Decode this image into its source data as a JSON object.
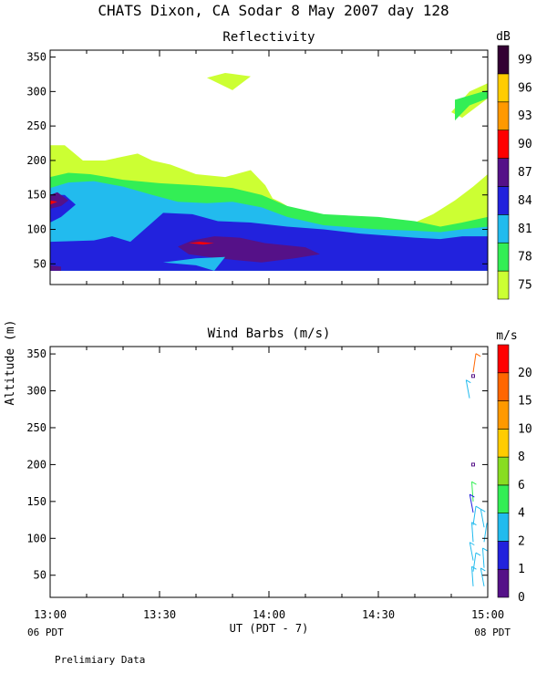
{
  "header": {
    "title": "CHATS Dixon, CA  Sodar   8 May 2007  day 128",
    "footer_note": "Prelimiary Data"
  },
  "chart_data": [
    {
      "type": "heatmap",
      "title": "Reflectivity",
      "ylabel": "Altitude (m)",
      "ylim": [
        20,
        360
      ],
      "yticks": [
        50,
        100,
        150,
        200,
        250,
        300,
        350
      ],
      "xlim": [
        0,
        120
      ],
      "colorbar": {
        "unit": "dB",
        "levels": [
          75,
          78,
          81,
          84,
          87,
          90,
          93,
          96,
          99
        ],
        "colors": [
          "#ccff33",
          "#33ee55",
          "#22bbee",
          "#2222dd",
          "#551188",
          "#ff0000",
          "#ff9900",
          "#ffcc00",
          "#330033"
        ]
      },
      "contour_regions": [
        {
          "level": 75,
          "polygons": [
            [
              [
                0,
                40
              ],
              [
                0,
                178
              ],
              [
                0,
                222
              ],
              [
                8,
                222
              ],
              [
                18,
                200
              ],
              [
                30,
                200
              ],
              [
                48,
                210
              ],
              [
                56,
                200
              ],
              [
                66,
                194
              ],
              [
                80,
                180
              ],
              [
                96,
                176
              ],
              [
                110,
                186
              ],
              [
                118,
                164
              ],
              [
                122,
                145
              ],
              [
                126,
                140
              ],
              [
                134,
                128
              ],
              [
                150,
                118
              ],
              [
                180,
                114
              ],
              [
                200,
                110
              ],
              [
                210,
                122
              ],
              [
                222,
                142
              ],
              [
                232,
                162
              ],
              [
                240,
                180
              ],
              [
                240,
                40
              ]
            ],
            [
              [
                86,
                320
              ],
              [
                96,
                327
              ],
              [
                110,
                322
              ],
              [
                100,
                302
              ]
            ],
            [
              [
                220,
                270
              ],
              [
                230,
                300
              ],
              [
                240,
                312
              ],
              [
                240,
                290
              ],
              [
                226,
                262
              ]
            ]
          ]
        },
        {
          "level": 78,
          "polygons": [
            [
              [
                0,
                40
              ],
              [
                0,
                160
              ],
              [
                0,
                176
              ],
              [
                10,
                182
              ],
              [
                22,
                180
              ],
              [
                40,
                172
              ],
              [
                60,
                167
              ],
              [
                80,
                164
              ],
              [
                100,
                160
              ],
              [
                116,
                150
              ],
              [
                130,
                134
              ],
              [
                150,
                122
              ],
              [
                180,
                118
              ],
              [
                200,
                112
              ],
              [
                214,
                104
              ],
              [
                226,
                110
              ],
              [
                240,
                118
              ],
              [
                240,
                40
              ]
            ],
            [
              [
                0,
                95
              ],
              [
                10,
                92
              ],
              [
                24,
                86
              ],
              [
                34,
                100
              ],
              [
                28,
                120
              ],
              [
                20,
                124
              ],
              [
                10,
                118
              ],
              [
                0,
                118
              ]
            ],
            [
              [
                222,
                258
              ],
              [
                230,
                280
              ],
              [
                240,
                290
              ],
              [
                240,
                302
              ],
              [
                222,
                288
              ]
            ]
          ]
        },
        {
          "level": 81,
          "polygons": [
            [
              [
                0,
                40
              ],
              [
                0,
                160
              ],
              [
                10,
                168
              ],
              [
                24,
                170
              ],
              [
                40,
                162
              ],
              [
                56,
                150
              ],
              [
                70,
                140
              ],
              [
                86,
                138
              ],
              [
                100,
                140
              ],
              [
                116,
                132
              ],
              [
                130,
                118
              ],
              [
                150,
                106
              ],
              [
                180,
                100
              ],
              [
                200,
                98
              ],
              [
                214,
                96
              ],
              [
                226,
                100
              ],
              [
                240,
                104
              ],
              [
                240,
                40
              ]
            ]
          ]
        },
        {
          "level": 84,
          "polygons": [
            [
              [
                0,
                40
              ],
              [
                0,
                82
              ],
              [
                24,
                84
              ],
              [
                34,
                90
              ],
              [
                44,
                82
              ],
              [
                56,
                110
              ],
              [
                62,
                124
              ],
              [
                78,
                122
              ],
              [
                92,
                112
              ],
              [
                110,
                110
              ],
              [
                130,
                104
              ],
              [
                150,
                100
              ],
              [
                170,
                94
              ],
              [
                200,
                88
              ],
              [
                214,
                86
              ],
              [
                226,
                90
              ],
              [
                240,
                90
              ],
              [
                240,
                40
              ]
            ],
            [
              [
                0,
                150
              ],
              [
                8,
                150
              ],
              [
                14,
                136
              ],
              [
                6,
                118
              ],
              [
                0,
                110
              ]
            ]
          ]
        },
        {
          "level": 87,
          "polygons": [
            [
              [
                70,
                75
              ],
              [
                78,
                84
              ],
              [
                90,
                90
              ],
              [
                104,
                88
              ],
              [
                118,
                80
              ],
              [
                140,
                74
              ],
              [
                148,
                64
              ],
              [
                134,
                58
              ],
              [
                116,
                52
              ],
              [
                92,
                58
              ],
              [
                76,
                64
              ]
            ],
            [
              [
                0,
                130
              ],
              [
                6,
                134
              ],
              [
                10,
                142
              ],
              [
                4,
                154
              ],
              [
                0,
                150
              ]
            ],
            [
              [
                0,
                40
              ],
              [
                6,
                40
              ],
              [
                6,
                46
              ],
              [
                0,
                48
              ]
            ]
          ]
        },
        {
          "level": 90,
          "polygons": [
            [
              [
                76,
                80
              ],
              [
                82,
                82
              ],
              [
                90,
                80
              ],
              [
                84,
                78
              ]
            ],
            [
              [
                0,
                136
              ],
              [
                2,
                138
              ],
              [
                4,
                140
              ],
              [
                0,
                142
              ]
            ]
          ]
        }
      ],
      "overlay_regions": [
        {
          "level": 81,
          "polygons": [
            [
              [
                62,
                52
              ],
              [
                80,
                58
              ],
              [
                96,
                60
              ],
              [
                90,
                40
              ],
              [
                80,
                48
              ]
            ]
          ]
        }
      ]
    },
    {
      "type": "scatter",
      "title": "Wind Barbs (m/s)",
      "ylabel": "Altitude (m)",
      "ylim": [
        20,
        360
      ],
      "yticks": [
        50,
        100,
        150,
        200,
        250,
        300,
        350
      ],
      "xlim": [
        0,
        120
      ],
      "xticks": [
        0,
        30,
        60,
        90,
        120
      ],
      "xtick_labels": [
        "13:00",
        "13:30",
        "14:00",
        "14:30",
        "15:00"
      ],
      "xlabel": "UT  (PDT - 7)",
      "x_start_label": "06 PDT",
      "x_end_label": "08 PDT",
      "colorbar": {
        "unit": "m/s",
        "levels": [
          0,
          1,
          2,
          4,
          6,
          8,
          10,
          15,
          20
        ],
        "colors": [
          "#551188",
          "#2222dd",
          "#22bbee",
          "#33ee55",
          "#88dd22",
          "#ffcc00",
          "#ff9900",
          "#ff6600",
          "#ff0000"
        ]
      },
      "barbs": [
        {
          "time": 116,
          "alt": 325,
          "color": "#ff6600"
        },
        {
          "time": 116,
          "alt": 320,
          "color": "#551188",
          "calm": true
        },
        {
          "time": 115,
          "alt": 290,
          "color": "#22bbee"
        },
        {
          "time": 116,
          "alt": 200,
          "color": "#551188",
          "calm": true
        },
        {
          "time": 116,
          "alt": 150,
          "color": "#33ee55"
        },
        {
          "time": 116,
          "alt": 135,
          "color": "#2222dd"
        },
        {
          "time": 116,
          "alt": 118,
          "color": "#22bbee"
        },
        {
          "time": 116,
          "alt": 95,
          "color": "#22bbee"
        },
        {
          "time": 116,
          "alt": 70,
          "color": "#22bbee"
        },
        {
          "time": 116,
          "alt": 55,
          "color": "#22bbee"
        },
        {
          "time": 116,
          "alt": 35,
          "color": "#22bbee"
        },
        {
          "time": 119,
          "alt": 115,
          "color": "#22bbee"
        },
        {
          "time": 119,
          "alt": 95,
          "color": "#22bbee"
        },
        {
          "time": 119,
          "alt": 60,
          "color": "#22bbee"
        },
        {
          "time": 119,
          "alt": 35,
          "color": "#22bbee"
        }
      ]
    }
  ]
}
